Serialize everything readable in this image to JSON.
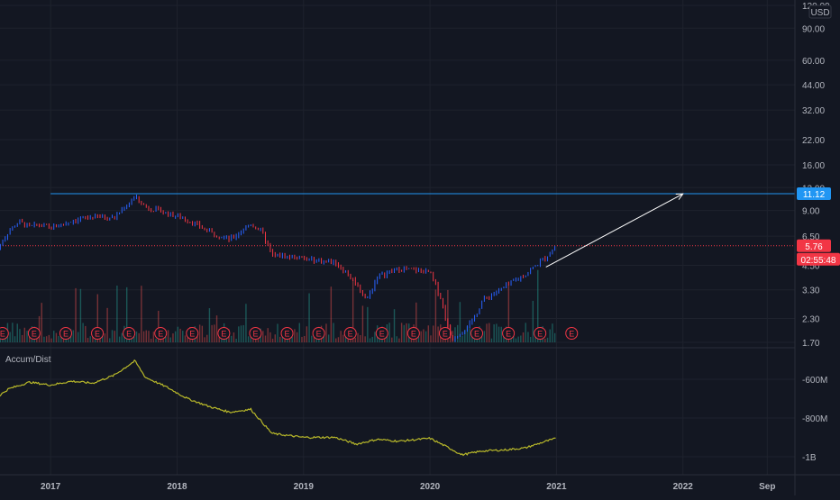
{
  "currency": "USD",
  "indicator": {
    "name": "Accum/Dist"
  },
  "colors": {
    "background": "#131722",
    "grid": "#1e222d",
    "axis_text": "#b2b5be",
    "up": "#2962ff",
    "down": "#f23645",
    "level_line": "#2196f3",
    "indicator_line": "#b9b92a",
    "arrow": "#ffffff"
  },
  "chart_data": [
    {
      "type": "candlestick",
      "title": "",
      "y_scale": "log",
      "ylim": [
        1.7,
        120
      ],
      "y_ticks": [
        "120.00",
        "90.00",
        "60.00",
        "44.00",
        "32.00",
        "22.00",
        "16.00",
        "12.00",
        "9.00",
        "6.50",
        "4.50",
        "3.30",
        "2.30",
        "1.70"
      ],
      "x_ticks": [
        "2017",
        "2018",
        "2019",
        "2020",
        "2021",
        "2022",
        "Sep"
      ],
      "close_path": [
        {
          "date": "2016-08",
          "value": 5.6
        },
        {
          "date": "2016-09",
          "value": 6.9
        },
        {
          "date": "2016-10",
          "value": 7.8
        },
        {
          "date": "2016-11",
          "value": 7.3
        },
        {
          "date": "2016-12",
          "value": 7.5
        },
        {
          "date": "2017-01",
          "value": 7.2
        },
        {
          "date": "2017-03",
          "value": 7.9
        },
        {
          "date": "2017-05",
          "value": 8.3
        },
        {
          "date": "2017-07",
          "value": 8.2
        },
        {
          "date": "2017-09",
          "value": 10.7
        },
        {
          "date": "2017-10",
          "value": 9.4
        },
        {
          "date": "2017-12",
          "value": 8.7
        },
        {
          "date": "2018-02",
          "value": 8.0
        },
        {
          "date": "2018-04",
          "value": 6.9
        },
        {
          "date": "2018-06",
          "value": 6.2
        },
        {
          "date": "2018-08",
          "value": 7.6
        },
        {
          "date": "2018-09",
          "value": 6.9
        },
        {
          "date": "2018-10",
          "value": 5.1
        },
        {
          "date": "2018-12",
          "value": 5.0
        },
        {
          "date": "2019-02",
          "value": 4.8
        },
        {
          "date": "2019-04",
          "value": 4.7
        },
        {
          "date": "2019-06",
          "value": 3.6
        },
        {
          "date": "2019-07",
          "value": 2.9
        },
        {
          "date": "2019-08",
          "value": 3.9
        },
        {
          "date": "2019-10",
          "value": 4.3
        },
        {
          "date": "2019-12",
          "value": 4.2
        },
        {
          "date": "2020-01",
          "value": 4.1
        },
        {
          "date": "2020-02",
          "value": 3.0
        },
        {
          "date": "2020-03",
          "value": 1.75
        },
        {
          "date": "2020-05",
          "value": 2.2
        },
        {
          "date": "2020-06",
          "value": 2.9
        },
        {
          "date": "2020-08",
          "value": 3.4
        },
        {
          "date": "2020-10",
          "value": 4.0
        },
        {
          "date": "2020-12",
          "value": 5.0
        },
        {
          "date": "2021-01",
          "value": 5.76
        }
      ],
      "horizontal_level": {
        "value": 11.12,
        "label": "11.12",
        "from_date": "2017-01"
      },
      "current_price": {
        "value": 5.76,
        "label": "5.76",
        "countdown": "02:55:48"
      },
      "trend_arrow": {
        "from": {
          "date": "2020-12",
          "value": 4.4
        },
        "to": {
          "date": "2022-01",
          "value": 11.1
        }
      },
      "earnings_marker": "E",
      "volume": {
        "shown": true
      }
    },
    {
      "type": "line",
      "title": "Accum/Dist",
      "y_ticks": [
        "-600M",
        "-800M",
        "-1B"
      ],
      "series": [
        {
          "values": [
            {
              "date": "2016-08",
              "value": -690
            },
            {
              "date": "2016-09",
              "value": -650
            },
            {
              "date": "2016-11",
              "value": -615
            },
            {
              "date": "2017-01",
              "value": -630
            },
            {
              "date": "2017-03",
              "value": -610
            },
            {
              "date": "2017-05",
              "value": -620
            },
            {
              "date": "2017-07",
              "value": -580
            },
            {
              "date": "2017-09",
              "value": -505
            },
            {
              "date": "2017-10",
              "value": -590
            },
            {
              "date": "2017-12",
              "value": -640
            },
            {
              "date": "2018-02",
              "value": -700
            },
            {
              "date": "2018-04",
              "value": -740
            },
            {
              "date": "2018-06",
              "value": -770
            },
            {
              "date": "2018-08",
              "value": -755
            },
            {
              "date": "2018-10",
              "value": -880
            },
            {
              "date": "2019-01",
              "value": -900
            },
            {
              "date": "2019-04",
              "value": -900
            },
            {
              "date": "2019-06",
              "value": -935
            },
            {
              "date": "2019-08",
              "value": -910
            },
            {
              "date": "2019-10",
              "value": -920
            },
            {
              "date": "2020-01",
              "value": -905
            },
            {
              "date": "2020-03",
              "value": -960
            },
            {
              "date": "2020-04",
              "value": -990
            },
            {
              "date": "2020-06",
              "value": -970
            },
            {
              "date": "2020-08",
              "value": -965
            },
            {
              "date": "2020-10",
              "value": -955
            },
            {
              "date": "2020-12",
              "value": -920
            },
            {
              "date": "2021-01",
              "value": -905
            }
          ]
        }
      ]
    }
  ]
}
